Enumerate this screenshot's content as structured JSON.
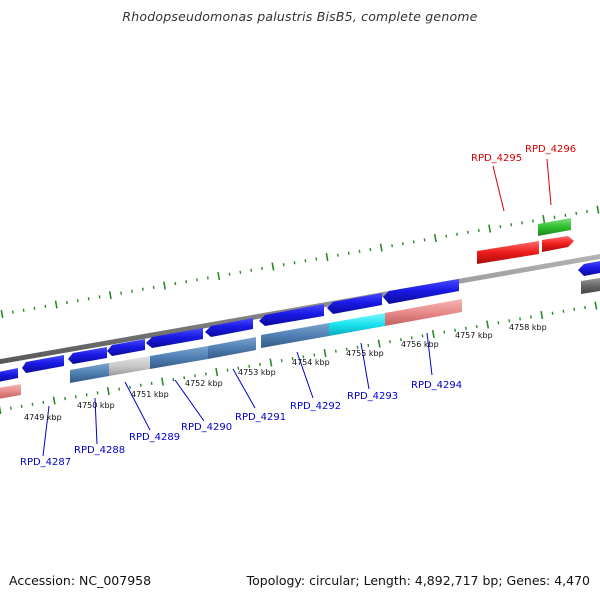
{
  "title": "Rhodopseudomonas palustris BisB5, complete genome",
  "footer": {
    "accession": "Accession: NC_007958",
    "summary": "Topology: circular; Length: 4,892,717 bp; Genes: 4,470"
  },
  "colors": {
    "backbone": "#888888",
    "tick": "#2a8a2a",
    "label_blue": "#0000cc",
    "label_red": "#dd0000",
    "blue_gene": "#1a1ae6",
    "steel_gene": "#4f7fb3",
    "grey_gene": "#c8c8c8",
    "cyan_gene": "#19e3f0",
    "salmon_gene": "#e88a8a",
    "red_gene": "#ee1c1c",
    "green_gene": "#2fbf2f",
    "dark_gene": "#666666"
  },
  "diagram": {
    "kbp_labels": [
      "4749 kbp",
      "4750 kbp",
      "4751 kbp",
      "4752 kbp",
      "4753 kbp",
      "4754 kbp",
      "4755 kbp",
      "4756 kbp",
      "4757 kbp",
      "4758 kbp"
    ],
    "gene_labels": [
      {
        "id": "RPD_4287",
        "color": "blue"
      },
      {
        "id": "RPD_4288",
        "color": "blue"
      },
      {
        "id": "RPD_4289",
        "color": "blue"
      },
      {
        "id": "RPD_4290",
        "color": "blue"
      },
      {
        "id": "RPD_4291",
        "color": "blue"
      },
      {
        "id": "RPD_4292",
        "color": "blue"
      },
      {
        "id": "RPD_4293",
        "color": "blue"
      },
      {
        "id": "RPD_4294",
        "color": "blue"
      },
      {
        "id": "RPD_4295",
        "color": "red"
      },
      {
        "id": "RPD_4296",
        "color": "red"
      }
    ]
  }
}
